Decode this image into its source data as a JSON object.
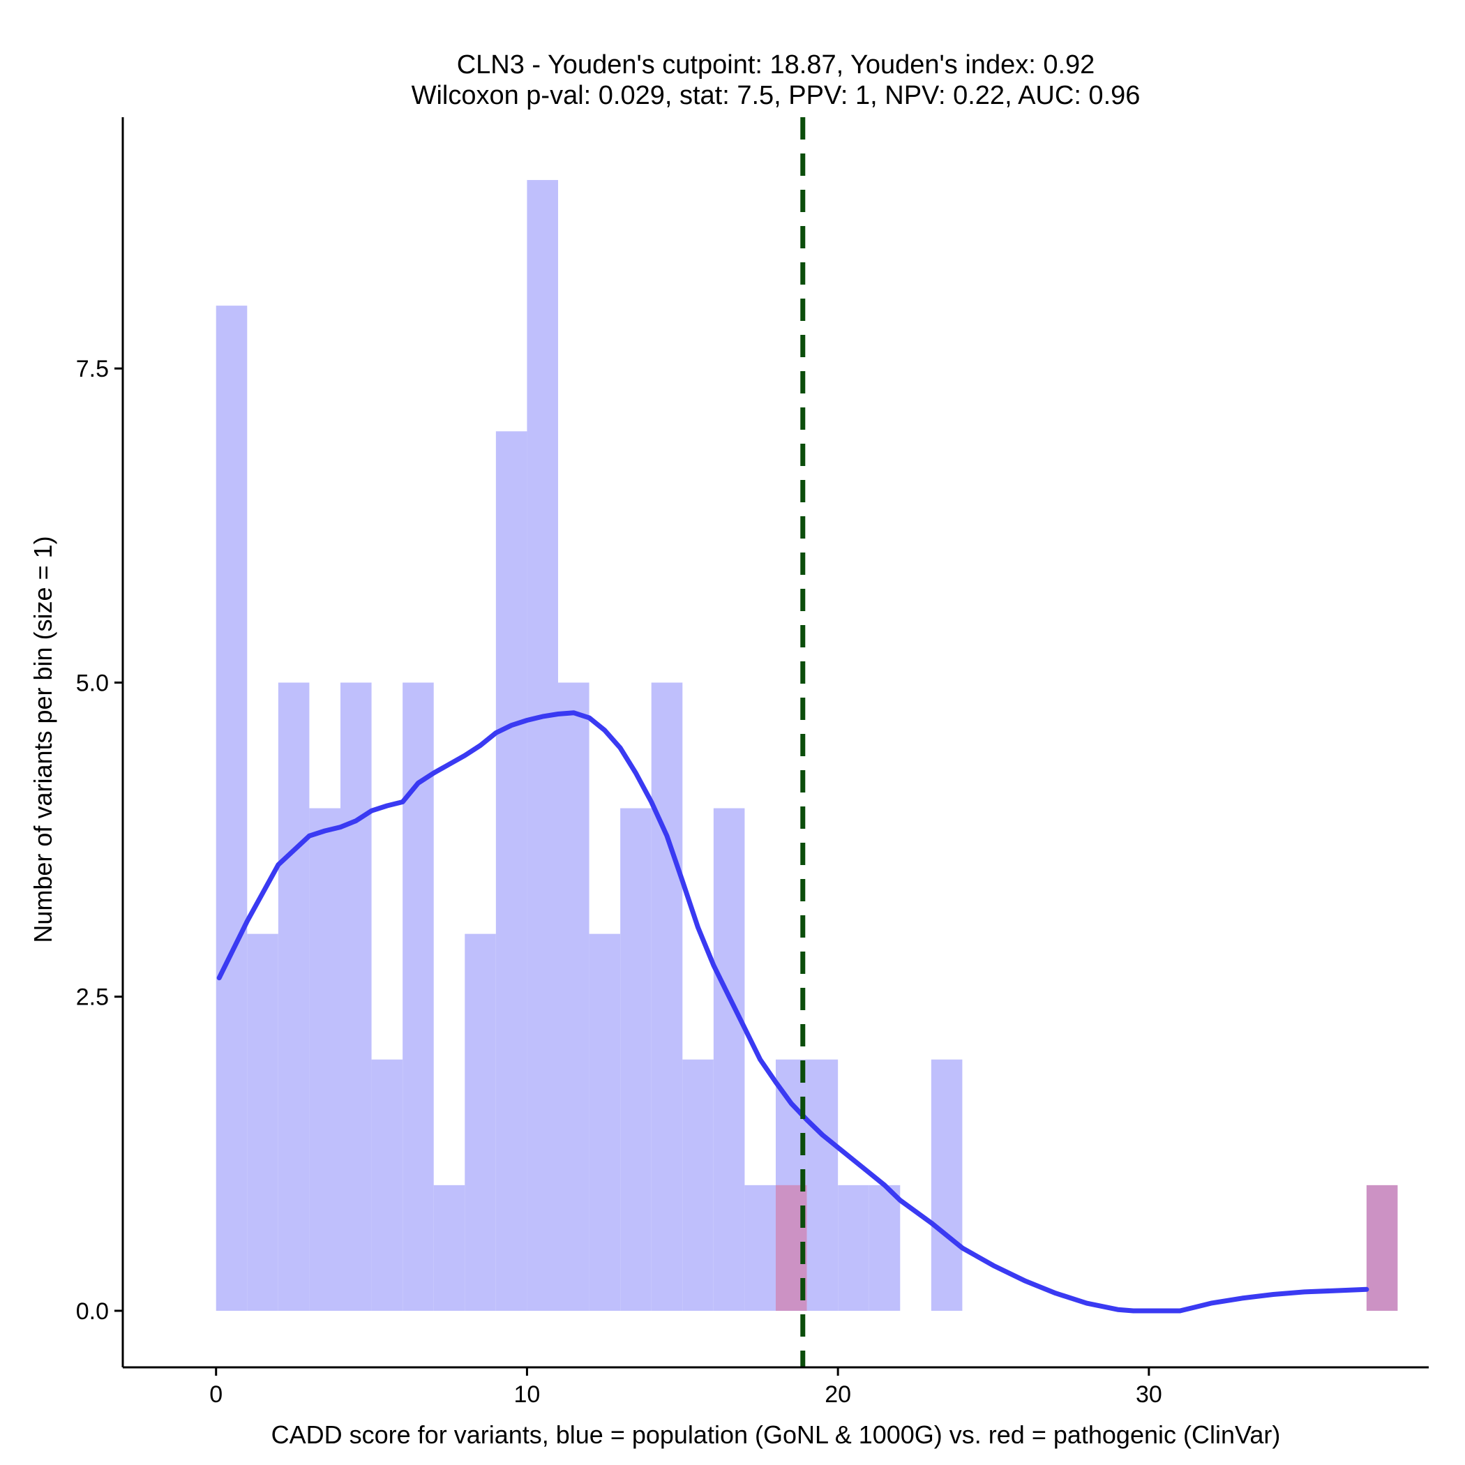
{
  "chart_data": {
    "type": "bar",
    "title": "CLN3 - Youden's cutpoint: 18.87, Youden's index: 0.92",
    "subtitle": "Wilcoxon p-val: 0.029, stat: 7.5, PPV: 1, NPV: 0.22, AUC: 0.96",
    "xlabel": "CADD score for variants, blue = population (GoNL & 1000G) vs. red = pathogenic (ClinVar)",
    "ylabel": "Number of variants per bin (size = 1)",
    "xlim": [
      -3,
      39
    ],
    "ylim": [
      -0.45,
      9.5
    ],
    "bin_width": 1,
    "x_ticks": [
      0,
      10,
      20,
      30
    ],
    "x_tick_labels": [
      "0",
      "10",
      "20",
      "30"
    ],
    "y_ticks": [
      0,
      2.5,
      5,
      7.5
    ],
    "y_tick_labels": [
      "0.0",
      "2.5",
      "5.0",
      "7.5"
    ],
    "colors": {
      "population": "#bfbffc",
      "pathogenic": "#cc92c4",
      "density": "#3a3af2",
      "cutpoint": "#0b4d0b",
      "axis": "#000000"
    },
    "series": [
      {
        "name": "population (GoNL & 1000G)",
        "bin_starts": [
          0,
          1,
          2,
          3,
          4,
          5,
          6,
          7,
          8,
          9,
          10,
          11,
          12,
          13,
          14,
          15,
          16,
          17,
          18,
          19,
          20,
          21,
          22,
          23
        ],
        "values": [
          8,
          3,
          5,
          4,
          5,
          2,
          5,
          1,
          3,
          7,
          9,
          5,
          3,
          4,
          5,
          2,
          4,
          1,
          2,
          2,
          1,
          1,
          0,
          2
        ]
      },
      {
        "name": "pathogenic (ClinVar)",
        "bin_starts": [
          18,
          37
        ],
        "values": [
          1,
          1
        ]
      }
    ],
    "density_curve": {
      "x": [
        0.1,
        1,
        2,
        3,
        3.5,
        4,
        4.5,
        5,
        5.5,
        6,
        6.5,
        7,
        7.5,
        8,
        8.5,
        9,
        9.5,
        10,
        10.5,
        11,
        11.5,
        12,
        12.5,
        13,
        13.5,
        14,
        14.5,
        15,
        15.5,
        16,
        16.5,
        17,
        17.5,
        18,
        18.5,
        19,
        19.5,
        20,
        20.5,
        21,
        21.5,
        22,
        23,
        24,
        25,
        26,
        27,
        28,
        29,
        29.5,
        30,
        31,
        31.5,
        32,
        33,
        34,
        35,
        36,
        37
      ],
      "y": [
        2.65,
        3.1,
        3.55,
        3.78,
        3.82,
        3.85,
        3.9,
        3.98,
        4.02,
        4.05,
        4.2,
        4.28,
        4.35,
        4.42,
        4.5,
        4.6,
        4.66,
        4.7,
        4.73,
        4.75,
        4.76,
        4.72,
        4.62,
        4.48,
        4.28,
        4.05,
        3.78,
        3.42,
        3.05,
        2.75,
        2.5,
        2.25,
        2.0,
        1.82,
        1.65,
        1.52,
        1.4,
        1.3,
        1.2,
        1.1,
        1.0,
        0.88,
        0.7,
        0.5,
        0.36,
        0.24,
        0.14,
        0.06,
        0.01,
        0.0,
        0.0,
        0.0,
        0.03,
        0.06,
        0.1,
        0.13,
        0.15,
        0.16,
        0.17
      ]
    },
    "cutpoint": 18.87
  }
}
